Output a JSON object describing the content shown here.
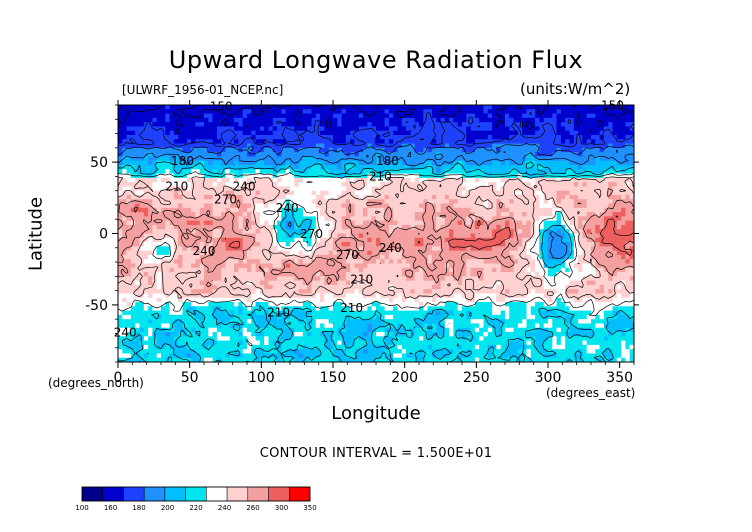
{
  "chart_data": {
    "type": "contour",
    "title": "Upward Longwave Radiation Flux",
    "dataset_label": "[ULWRF_1956-01_NCEP.nc]",
    "units_label": "(units:W/m^2)",
    "xlabel": "Longitude",
    "ylabel": "Latitude",
    "x_unit_note": "(degrees_east)",
    "y_unit_note": "(degrees_north)",
    "xlim": [
      0,
      360
    ],
    "ylim": [
      -90,
      90
    ],
    "xticks": [
      "0",
      "50",
      "100",
      "150",
      "200",
      "250",
      "300",
      "350"
    ],
    "yticks": [
      "50",
      "0",
      "-50"
    ],
    "contour_interval_text": "CONTOUR INTERVAL = 1.500E+01",
    "contour_labels": [
      "150",
      "180",
      "210",
      "240",
      "270",
      "180",
      "210",
      "240",
      "270",
      "240",
      "210",
      "240",
      "210",
      "210",
      "240",
      "270",
      "150"
    ],
    "colorbar": {
      "levels": [
        "100",
        "160",
        "180",
        "200",
        "220",
        "240",
        "260",
        "300",
        "350"
      ],
      "colors": [
        "#00008b",
        "#0000cd",
        "#1e40ff",
        "#1e90ff",
        "#00bfff",
        "#00e5ee",
        "#ffffff",
        "#ffd0d0",
        "#f4a0a0",
        "#ee6060",
        "#ff0000"
      ]
    },
    "features": {
      "arctic_band": {
        "lat_range": [
          60,
          90
        ],
        "value_approx": 160
      },
      "tropical_band": {
        "lat_range": [
          -40,
          30
        ],
        "value_approx": 270
      },
      "southern_ocean_band": {
        "lat_range": [
          -90,
          -45
        ],
        "value_approx": 210
      },
      "low_over_maritime_continent": {
        "lon": 125,
        "lat": 2,
        "value_approx": 210
      },
      "low_over_amazon": {
        "lon": 305,
        "lat": -5,
        "value_approx": 180
      }
    }
  }
}
